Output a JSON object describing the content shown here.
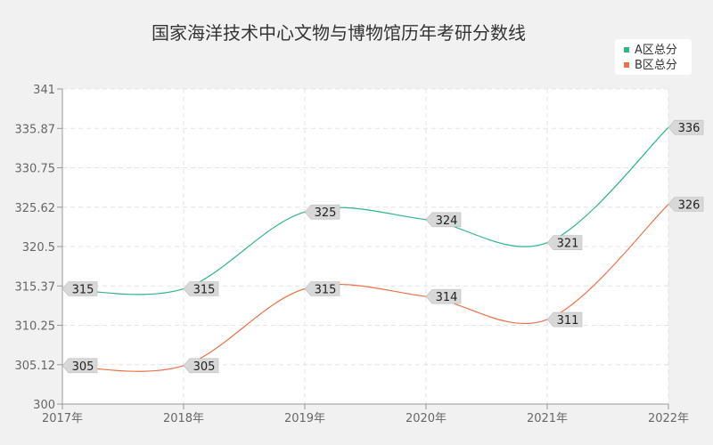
{
  "chart_data": {
    "type": "line",
    "title": "国家海洋技术中心文物与博物馆历年考研分数线",
    "categories": [
      "2017年",
      "2018年",
      "2019年",
      "2020年",
      "2021年",
      "2022年"
    ],
    "series": [
      {
        "name": "A区总分",
        "color": "#2bb58b",
        "values": [
          315,
          315,
          325,
          324,
          321,
          336
        ]
      },
      {
        "name": "B区总分",
        "color": "#e8734a",
        "values": [
          305,
          305,
          315,
          314,
          311,
          326
        ]
      }
    ],
    "ylim": [
      300,
      341
    ],
    "yticks": [
      "300",
      "305.12",
      "310.25",
      "315.37",
      "320.5",
      "325.62",
      "330.75",
      "335.87",
      "341"
    ],
    "ytick_values": [
      300,
      305.12,
      310.25,
      315.37,
      320.5,
      325.62,
      330.75,
      335.87,
      341
    ],
    "grid": true,
    "legend_position": "top-right"
  }
}
